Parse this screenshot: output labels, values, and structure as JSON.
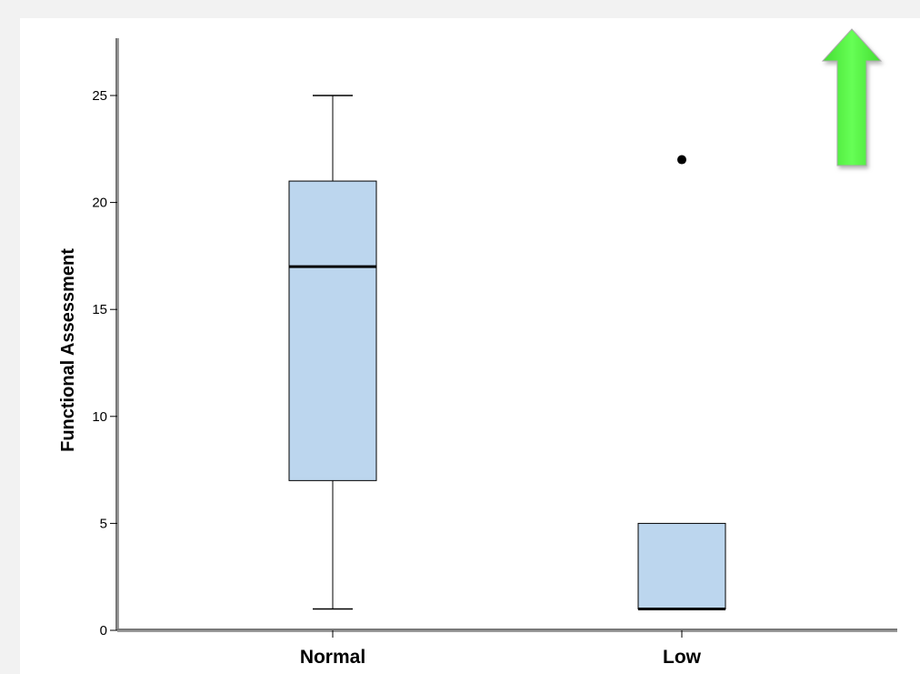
{
  "chart_data": {
    "type": "box",
    "title": "",
    "xlabel": "",
    "ylabel": "Functional Assessment",
    "ylim": [
      0,
      25
    ],
    "yticks": [
      "0",
      "5",
      "10",
      "15",
      "20",
      "25"
    ],
    "categories": [
      "Normal",
      "Low"
    ],
    "boxes": [
      {
        "category": "Normal",
        "whisker_low": 1,
        "q1": 7,
        "median": 17,
        "q3": 21,
        "whisker_high": 25,
        "outliers": []
      },
      {
        "category": "Low",
        "whisker_low": 1,
        "q1": 1,
        "median": 1,
        "q3": 5,
        "whisker_high": 5,
        "outliers": [
          22
        ]
      }
    ],
    "box_fill": "#bcd6ee",
    "grid": false,
    "legend": "none"
  },
  "decorations": {
    "arrow_icon": "up-arrow-icon",
    "arrow_color": "#55ee44"
  }
}
